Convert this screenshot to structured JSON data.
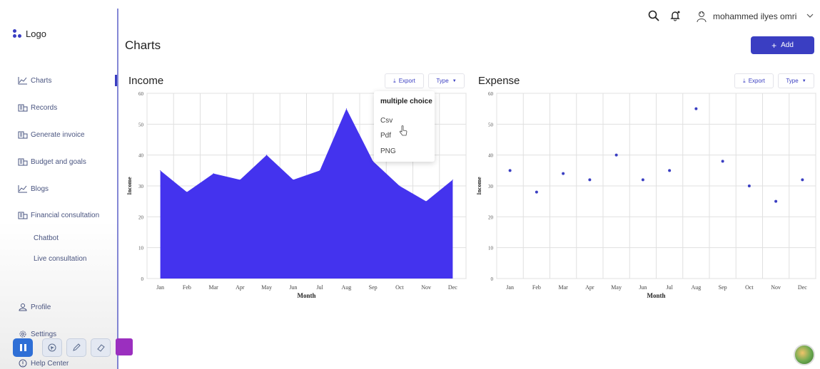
{
  "sidebar": {
    "logo": "Logo",
    "items": [
      {
        "label": "Charts",
        "icon": "chart-line-icon"
      },
      {
        "label": "Records",
        "icon": "building-icon"
      },
      {
        "label": "Generate invoice",
        "icon": "building-icon"
      },
      {
        "label": "Budget and goals",
        "icon": "building-icon"
      },
      {
        "label": "Blogs",
        "icon": "chart-line-icon"
      },
      {
        "label": "Financial consultation",
        "icon": "building-icon"
      }
    ],
    "sub_items": [
      "Chatbot",
      "Live consultation"
    ],
    "bottom": {
      "profile": "Profile",
      "settings": "Settings",
      "help": "Help Center"
    }
  },
  "header": {
    "user_name": "mohammed ilyes omri",
    "page_title": "Charts",
    "add_label": "Add"
  },
  "panels": {
    "income": {
      "title": "Income",
      "export": "Export",
      "type": "Type"
    },
    "expense": {
      "title": "Expense",
      "export": "Export",
      "type": "Type"
    }
  },
  "dropdown": {
    "heading": "multiple choice",
    "options": [
      "Csv",
      "Pdf",
      "PNG"
    ]
  },
  "colors": {
    "accent": "#3a3ec2",
    "area_fill": "#4433ee",
    "dot": "#3a3ec2"
  },
  "chart_data": [
    {
      "type": "area",
      "categories": [
        "Jan",
        "Feb",
        "Mar",
        "Apr",
        "May",
        "Jun",
        "Jul",
        "Aug",
        "Sep",
        "Oct",
        "Nov",
        "Dec"
      ],
      "values": [
        35,
        28,
        34,
        32,
        40,
        32,
        35,
        55,
        38,
        30,
        25,
        32
      ],
      "ylim": [
        0,
        60
      ],
      "yticks": [
        0,
        10,
        20,
        30,
        40,
        50,
        60
      ],
      "xlabel": "Month",
      "ylabel": "Income",
      "grid": true
    },
    {
      "type": "scatter",
      "categories": [
        "Jan",
        "Feb",
        "Mar",
        "Apr",
        "May",
        "Jun",
        "Jul",
        "Aug",
        "Sep",
        "Oct",
        "Nov",
        "Dec"
      ],
      "values": [
        35,
        28,
        34,
        32,
        40,
        32,
        35,
        55,
        38,
        30,
        25,
        32
      ],
      "ylim": [
        0,
        60
      ],
      "yticks": [
        0,
        10,
        20,
        30,
        40,
        50,
        60
      ],
      "xlabel": "Month",
      "ylabel": "Income",
      "grid": true
    }
  ]
}
